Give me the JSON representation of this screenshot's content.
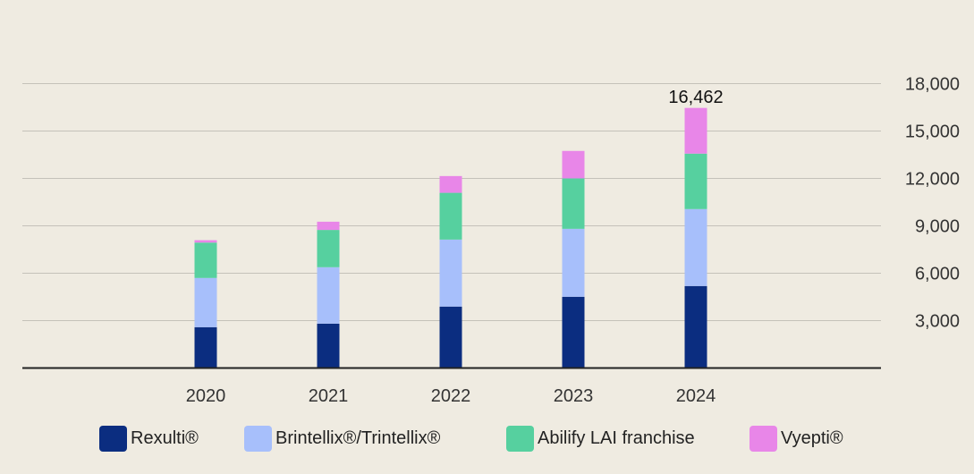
{
  "chart_data": {
    "type": "bar",
    "stacked": true,
    "categories": [
      "2020",
      "2021",
      "2022",
      "2023",
      "2024"
    ],
    "series": [
      {
        "name": "Rexulti®",
        "color": "#0b2d80",
        "values": [
          2585,
          2810,
          3890,
          4510,
          5190
        ]
      },
      {
        "name": "Brintellix®/Trintellix®",
        "color": "#a7bffb",
        "values": [
          3115,
          3570,
          4240,
          4300,
          4870
        ]
      },
      {
        "name": "Abilify LAI franchise",
        "color": "#56d09f",
        "values": [
          2240,
          2360,
          2960,
          3190,
          3510
        ]
      },
      {
        "name": "Vyepti®",
        "color": "#e886e8",
        "values": [
          150,
          520,
          1060,
          1740,
          2892
        ]
      }
    ],
    "yticks": [
      "3,000",
      "6,000",
      "9,000",
      "12,000",
      "15,000",
      "18,000"
    ],
    "ytick_values": [
      3000,
      6000,
      9000,
      12000,
      15000,
      18000
    ],
    "ylim": [
      0,
      18000
    ],
    "yaxis_side": "right",
    "grid": true,
    "annotations": [
      {
        "category": "2024",
        "text": "16,462"
      }
    ],
    "legend_position": "bottom"
  }
}
